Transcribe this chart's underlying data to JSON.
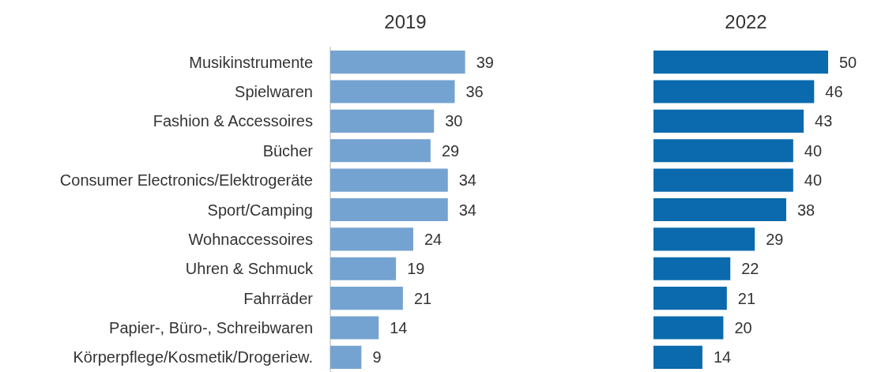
{
  "chart_data": [
    {
      "type": "bar",
      "orientation": "horizontal",
      "title": "2019",
      "categories": [
        "Musikinstrumente",
        "Spielwaren",
        "Fashion & Accessoires",
        "Bücher",
        "Consumer Electronics/Elektrogeräte",
        "Sport/Camping",
        "Wohnaccessoires",
        "Uhren & Schmuck",
        "Fahrräder",
        "Papier-, Büro-, Schreibwaren",
        "Körperpflege/Kosmetik/Drogeriew."
      ],
      "values": [
        39,
        36,
        30,
        29,
        34,
        34,
        24,
        19,
        21,
        14,
        9
      ],
      "color": "#75a3d1",
      "data_labels": true,
      "tick_labels": "y"
    },
    {
      "type": "bar",
      "orientation": "horizontal",
      "title": "2022",
      "categories": [
        null,
        null,
        null,
        null,
        null,
        null,
        null,
        null,
        null,
        null,
        null
      ],
      "values": [
        50,
        46,
        43,
        40,
        40,
        38,
        29,
        22,
        21,
        20,
        14
      ],
      "color": "#0a6aad",
      "data_labels": true,
      "tick_labels": false
    }
  ]
}
